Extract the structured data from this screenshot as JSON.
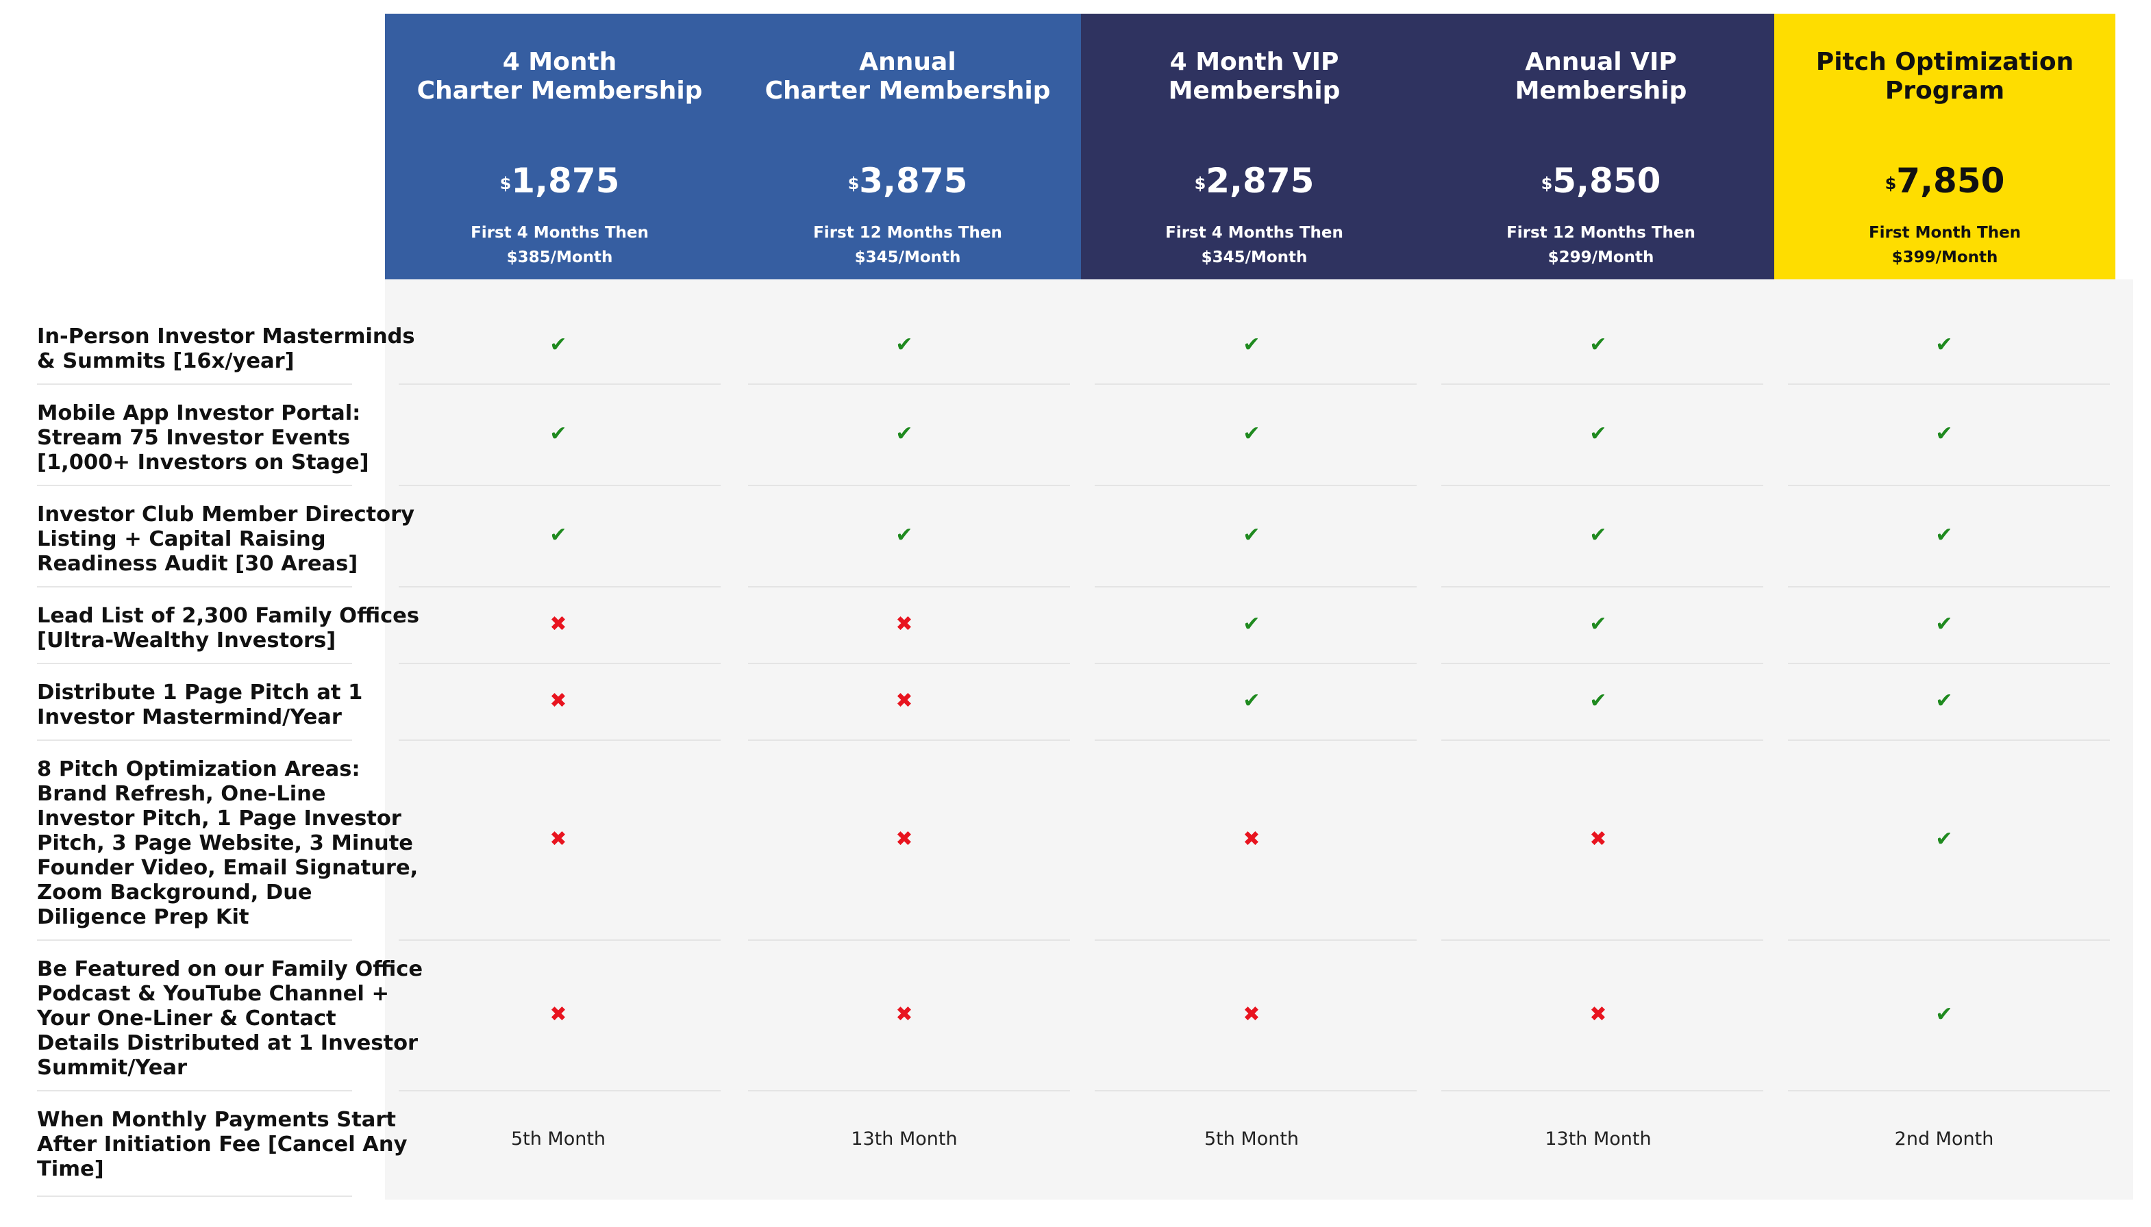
{
  "plans": [
    {
      "name_lines": [
        "4 Month",
        "Charter Membership"
      ],
      "currency": "$",
      "price": "1,875",
      "note_lines": [
        "First 4 Months Then",
        "$385/Month"
      ],
      "color": "#365ea1"
    },
    {
      "name_lines": [
        "Annual",
        "Charter Membership"
      ],
      "currency": "$",
      "price": "3,875",
      "note_lines": [
        "First 12 Months Then",
        "$345/Month"
      ],
      "color": "#365ea1"
    },
    {
      "name_lines": [
        "4 Month VIP",
        "Membership"
      ],
      "currency": "$",
      "price": "2,875",
      "note_lines": [
        "First 4 Months Then",
        "$345/Month"
      ],
      "color": "#2f3360"
    },
    {
      "name_lines": [
        "Annual VIP",
        "Membership"
      ],
      "currency": "$",
      "price": "5,850",
      "note_lines": [
        "First 12 Months Then",
        "$299/Month"
      ],
      "color": "#2f3360"
    },
    {
      "name_lines": [
        "Pitch Optimization",
        "Program"
      ],
      "currency": "$",
      "price": "7,850",
      "note_lines": [
        "First Month Then",
        "$399/Month"
      ],
      "color": "#fedd00"
    }
  ],
  "features": [
    {
      "label_lines": [
        "In-Person Investor Masterminds",
        "& Summits [16x/year]"
      ],
      "values": [
        "check",
        "check",
        "check",
        "check",
        "check"
      ]
    },
    {
      "label_lines": [
        "Mobile App Investor Portal:",
        "Stream 75 Investor Events",
        "[1,000+ Investors on Stage]"
      ],
      "values": [
        "check",
        "check",
        "check",
        "check",
        "check"
      ]
    },
    {
      "label_lines": [
        "Investor Club Member Directory",
        "Listing + Capital Raising",
        "Readiness Audit [30 Areas]"
      ],
      "values": [
        "check",
        "check",
        "check",
        "check",
        "check"
      ]
    },
    {
      "label_lines": [
        "Lead List of 2,300 Family Offices",
        "[Ultra-Wealthy Investors]"
      ],
      "values": [
        "cross",
        "cross",
        "check",
        "check",
        "check"
      ]
    },
    {
      "label_lines": [
        "Distribute 1 Page Pitch at 1",
        "Investor Mastermind/Year"
      ],
      "values": [
        "cross",
        "cross",
        "check",
        "check",
        "check"
      ]
    },
    {
      "label_lines": [
        "8 Pitch Optimization Areas:",
        "Brand Refresh, One-Line",
        "Investor Pitch, 1 Page Investor",
        "Pitch, 3 Page Website, 3 Minute",
        "Founder Video, Email Signature,",
        "Zoom Background, Due",
        "Diligence Prep Kit"
      ],
      "values": [
        "cross",
        "cross",
        "cross",
        "cross",
        "check"
      ]
    },
    {
      "label_lines": [
        "Be Featured on our Family Office",
        "Podcast & YouTube Channel +",
        "Your One-Liner & Contact",
        "Details Distributed at 1 Investor",
        "Summit/Year"
      ],
      "values": [
        "cross",
        "cross",
        "cross",
        "cross",
        "check"
      ]
    },
    {
      "label_lines": [
        "When Monthly Payments Start",
        "After Initiation Fee [Cancel Any",
        "Time]"
      ],
      "values": [
        "5th Month",
        "13th Month",
        "5th Month",
        "13th Month",
        "2nd Month"
      ]
    }
  ],
  "icons": {
    "check": "check-icon",
    "cross": "cross-icon"
  },
  "colors": {
    "check": "#1f8a1f",
    "cross": "#e8141f",
    "grey_body": "#f5f5f5"
  }
}
